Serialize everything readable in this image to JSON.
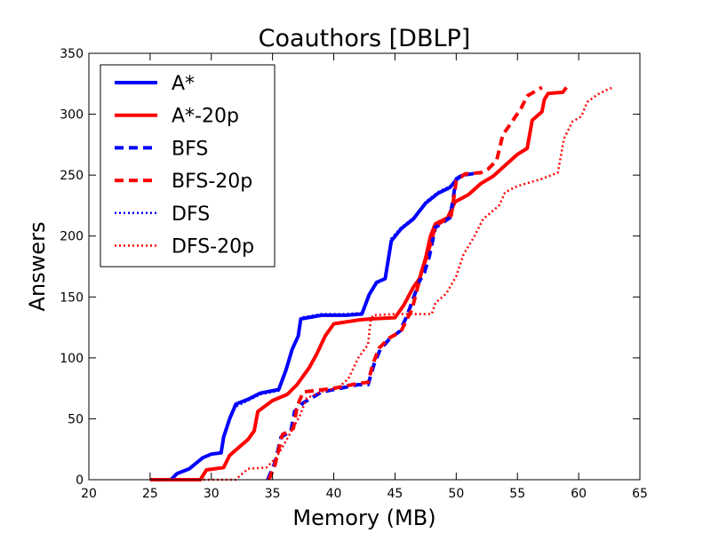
{
  "chart_data": {
    "type": "line",
    "title": "Coauthors [DBLP]",
    "xlabel": "Memory (MB)",
    "ylabel": "Answers",
    "xlim": [
      20,
      65
    ],
    "ylim": [
      0,
      350
    ],
    "xticks": [
      20,
      25,
      30,
      35,
      40,
      45,
      50,
      55,
      60,
      65
    ],
    "yticks": [
      0,
      50,
      100,
      150,
      200,
      250,
      300,
      350
    ],
    "grid": false,
    "legend_position": "top-left",
    "series": [
      {
        "name": "A*",
        "color": "#0000ff",
        "style": "solid",
        "points": [
          [
            25,
            0
          ],
          [
            26.7,
            0
          ],
          [
            27.2,
            5
          ],
          [
            28.2,
            9
          ],
          [
            29.3,
            18
          ],
          [
            30,
            21
          ],
          [
            30.8,
            22
          ],
          [
            31,
            35
          ],
          [
            31.5,
            50
          ],
          [
            32,
            62
          ],
          [
            33,
            66
          ],
          [
            34,
            71
          ],
          [
            35.5,
            74
          ],
          [
            36.1,
            90
          ],
          [
            36.6,
            107
          ],
          [
            37.1,
            118
          ],
          [
            37.3,
            132
          ],
          [
            39,
            135
          ],
          [
            41,
            135
          ],
          [
            42.3,
            136
          ],
          [
            42.9,
            152
          ],
          [
            43.5,
            162
          ],
          [
            44.2,
            165
          ],
          [
            44.7,
            196
          ],
          [
            45.5,
            206
          ],
          [
            46.5,
            214
          ],
          [
            47.5,
            227
          ],
          [
            48.5,
            235
          ],
          [
            49.5,
            240
          ],
          [
            50,
            246
          ],
          [
            50.5,
            250
          ]
        ]
      },
      {
        "name": "A*-20p",
        "color": "#ff0000",
        "style": "solid",
        "points": [
          [
            25,
            0
          ],
          [
            29.1,
            0
          ],
          [
            29.6,
            8
          ],
          [
            31,
            10
          ],
          [
            31.5,
            20
          ],
          [
            33,
            33
          ],
          [
            33.5,
            40
          ],
          [
            33.8,
            56
          ],
          [
            35,
            65
          ],
          [
            36.2,
            70
          ],
          [
            37,
            78
          ],
          [
            38,
            92
          ],
          [
            38.6,
            103
          ],
          [
            39.3,
            118
          ],
          [
            40,
            128
          ],
          [
            42,
            131
          ],
          [
            43,
            132
          ],
          [
            45,
            133
          ],
          [
            45.7,
            143
          ],
          [
            46.5,
            158
          ],
          [
            47,
            165
          ],
          [
            47.5,
            182
          ],
          [
            47.9,
            200
          ],
          [
            48.3,
            210
          ],
          [
            49.3,
            215
          ],
          [
            49.9,
            228
          ],
          [
            51,
            234
          ],
          [
            52,
            243
          ],
          [
            53,
            249
          ],
          [
            55,
            267
          ],
          [
            55.8,
            272
          ],
          [
            56.2,
            295
          ],
          [
            57,
            302
          ],
          [
            57.2,
            312
          ],
          [
            57.5,
            317
          ],
          [
            58.7,
            318
          ],
          [
            59,
            322
          ]
        ]
      },
      {
        "name": "BFS",
        "color": "#0000ff",
        "style": "dashed",
        "points": [
          [
            34.6,
            0
          ],
          [
            35.2,
            14
          ],
          [
            35.7,
            35
          ],
          [
            36.5,
            40
          ],
          [
            36.8,
            56
          ],
          [
            37.5,
            63
          ],
          [
            39,
            72
          ],
          [
            42,
            78
          ],
          [
            42.8,
            78
          ],
          [
            43.3,
            95
          ],
          [
            43.8,
            107
          ],
          [
            44.5,
            115
          ],
          [
            45.4,
            122
          ],
          [
            46,
            135
          ],
          [
            47,
            163
          ],
          [
            47.4,
            170
          ],
          [
            47.8,
            183
          ],
          [
            48.3,
            207
          ],
          [
            49.5,
            215
          ],
          [
            50,
            247
          ],
          [
            50.5,
            250
          ],
          [
            52,
            252
          ]
        ]
      },
      {
        "name": "BFS-20p",
        "color": "#ff0000",
        "style": "dashed",
        "points": [
          [
            34.7,
            0
          ],
          [
            35.2,
            12
          ],
          [
            35.8,
            37
          ],
          [
            36.7,
            42
          ],
          [
            37,
            60
          ],
          [
            37.5,
            72
          ],
          [
            40,
            75
          ],
          [
            42,
            79
          ],
          [
            42.8,
            80
          ],
          [
            43.2,
            95
          ],
          [
            43.7,
            108
          ],
          [
            44.5,
            116
          ],
          [
            45.5,
            122
          ],
          [
            46.4,
            140
          ],
          [
            47.2,
            172
          ],
          [
            47.6,
            183
          ],
          [
            48.3,
            208
          ],
          [
            49.6,
            217
          ],
          [
            50,
            245
          ],
          [
            50.7,
            251
          ],
          [
            52,
            252
          ],
          [
            52.6,
            255
          ],
          [
            53.3,
            262
          ],
          [
            53.8,
            283
          ],
          [
            54.5,
            293
          ],
          [
            55.3,
            305
          ],
          [
            55.8,
            315
          ],
          [
            57,
            322
          ]
        ]
      },
      {
        "name": "DFS",
        "color": "#0000ff",
        "style": "dotted",
        "points": [
          [
            25,
            0
          ],
          [
            26.7,
            0
          ],
          [
            27.2,
            5
          ],
          [
            28.2,
            9
          ],
          [
            29.3,
            18
          ],
          [
            30,
            21
          ],
          [
            30.8,
            22
          ],
          [
            31,
            35
          ],
          [
            31.5,
            50
          ],
          [
            32,
            60
          ],
          [
            33,
            65
          ],
          [
            34,
            70
          ],
          [
            35.5,
            73
          ],
          [
            36.1,
            90
          ],
          [
            36.6,
            107
          ],
          [
            37.1,
            118
          ],
          [
            37.3,
            133
          ],
          [
            39,
            136
          ],
          [
            41,
            136
          ],
          [
            42.3,
            137
          ],
          [
            42.9,
            152
          ],
          [
            43.5,
            161
          ],
          [
            44.2,
            165
          ],
          [
            44.7,
            198
          ],
          [
            45.5,
            207
          ],
          [
            46.5,
            215
          ],
          [
            47.5,
            228
          ],
          [
            48.5,
            236
          ],
          [
            49.5,
            241
          ],
          [
            50,
            247
          ],
          [
            50.5,
            251
          ]
        ]
      },
      {
        "name": "DFS-20p",
        "color": "#ff0000",
        "style": "dotted",
        "points": [
          [
            25,
            0
          ],
          [
            32,
            0
          ],
          [
            32.3,
            3
          ],
          [
            33,
            9
          ],
          [
            34.5,
            10
          ],
          [
            35.3,
            18
          ],
          [
            36,
            30
          ],
          [
            37.2,
            52
          ],
          [
            37.8,
            67
          ],
          [
            39.2,
            73
          ],
          [
            40.3,
            75
          ],
          [
            41.2,
            83
          ],
          [
            42,
            100
          ],
          [
            42.8,
            111
          ],
          [
            43,
            130
          ],
          [
            43.2,
            135
          ],
          [
            45,
            136
          ],
          [
            48,
            136
          ],
          [
            48.3,
            145
          ],
          [
            49.2,
            153
          ],
          [
            50,
            167
          ],
          [
            50.6,
            185
          ],
          [
            51.5,
            200
          ],
          [
            52.2,
            214
          ],
          [
            53.5,
            225
          ],
          [
            54,
            236
          ],
          [
            55,
            241
          ],
          [
            57,
            247
          ],
          [
            58.3,
            252
          ],
          [
            58.8,
            280
          ],
          [
            59.5,
            294
          ],
          [
            60.2,
            298
          ],
          [
            60.7,
            310
          ],
          [
            61.5,
            316
          ],
          [
            62.3,
            320
          ],
          [
            62.8,
            322
          ]
        ]
      }
    ]
  }
}
